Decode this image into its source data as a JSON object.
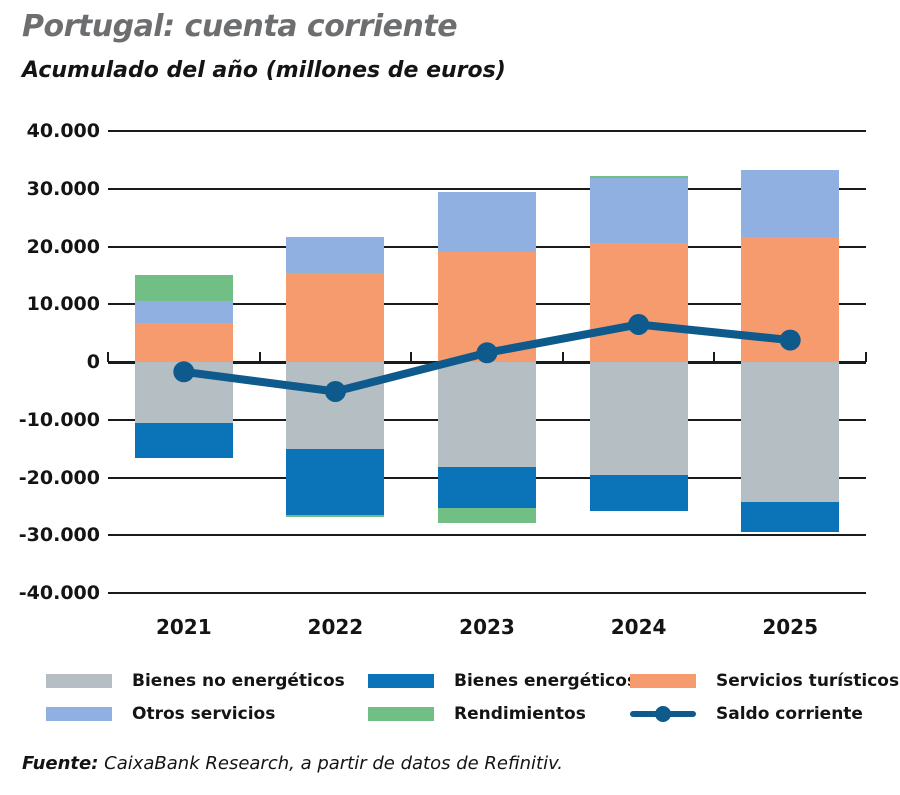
{
  "header": {
    "title": "Portugal: cuenta corriente",
    "subtitle": "Acumulado del año (millones de euros)"
  },
  "chart_data": {
    "type": "bar",
    "subtype": "stacked-bar-with-line",
    "title": "Portugal: cuenta corriente",
    "subtitle": "Acumulado del año (millones de euros)",
    "unit": "millones de euros",
    "categories": [
      "2021",
      "2022",
      "2023",
      "2024",
      "2025"
    ],
    "series": [
      {
        "name": "Servicios turísticos",
        "color": "#f59b6d",
        "values": [
          6700,
          15400,
          19100,
          20600,
          21700
        ]
      },
      {
        "name": "Otros servicios",
        "color": "#8fb0e0",
        "values": [
          3900,
          6300,
          10300,
          11200,
          11500
        ]
      },
      {
        "name": "Bienes no energéticos",
        "color": "#b5bec3",
        "values": [
          -10600,
          -15000,
          -18100,
          -19600,
          -24300
        ]
      },
      {
        "name": "Bienes energéticos",
        "color": "#0b73b8",
        "values": [
          -6100,
          -11500,
          -7100,
          -6200,
          -5100
        ]
      },
      {
        "name": "Rendimientos",
        "color": "#72bf85",
        "values": [
          4400,
          -300,
          -2600,
          500,
          0
        ]
      }
    ],
    "line_series": {
      "name": "Saldo corriente",
      "color": "#0e5a8c",
      "values": [
        -1700,
        -5100,
        1600,
        6500,
        3800
      ]
    },
    "ylim": [
      -40000,
      40000
    ],
    "ytick_step": 10000,
    "ytick_labels": [
      "40.000",
      "30.000",
      "20.000",
      "10.000",
      "0",
      "-10.000",
      "-20.000",
      "-30.000",
      "-40.000"
    ],
    "grid": true,
    "legend_position": "bottom"
  },
  "legend": {
    "items": [
      {
        "label": "Bienes no energéticos",
        "color": "#b5bec3",
        "type": "box"
      },
      {
        "label": "Bienes energéticos",
        "color": "#0b73b8",
        "type": "box"
      },
      {
        "label": "Servicios turísticos",
        "color": "#f59b6d",
        "type": "box"
      },
      {
        "label": "Otros servicios",
        "color": "#8fb0e0",
        "type": "box"
      },
      {
        "label": "Rendimientos",
        "color": "#72bf85",
        "type": "box"
      },
      {
        "label": "Saldo corriente",
        "color": "#0e5a8c",
        "type": "line"
      }
    ]
  },
  "source": {
    "prefix": "Fuente:",
    "text": " CaixaBank Research, a partir de datos de Refinitiv."
  }
}
